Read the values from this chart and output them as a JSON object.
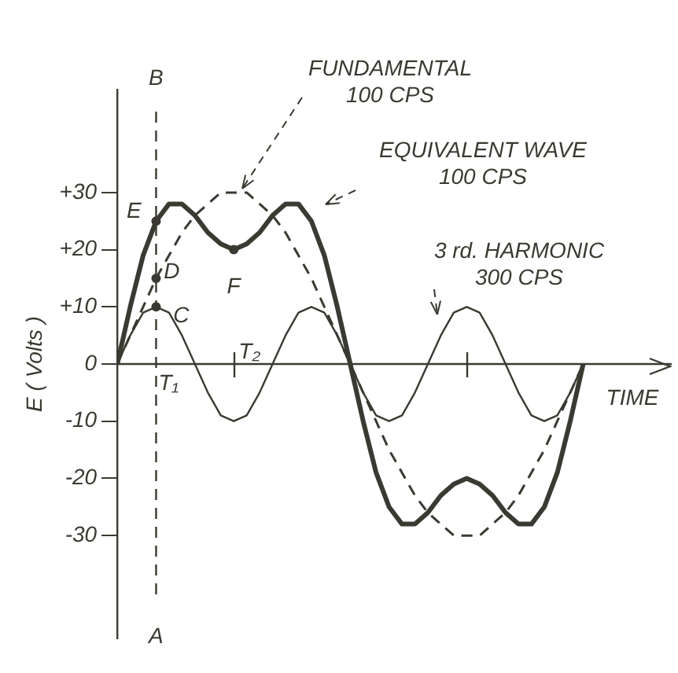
{
  "chart_data": {
    "type": "line",
    "ylabel": "E ( Volts )",
    "xlabel": "TIME",
    "categories": [
      null,
      null,
      null,
      null,
      null,
      null,
      null,
      null,
      null,
      null,
      null,
      null,
      null,
      null,
      null,
      null,
      null,
      null,
      null,
      null,
      null,
      null,
      null,
      null,
      null,
      null,
      null,
      null,
      null,
      null,
      null,
      null,
      null,
      null,
      null,
      null,
      null
    ],
    "series": [
      {
        "name": "FUNDAMENTAL\n100 CPS",
        "color": "#3a3a32",
        "line_style": "dashed",
        "values": [
          0,
          5,
          10,
          15,
          19,
          23,
          26,
          28,
          30,
          30,
          30,
          28,
          26,
          23,
          19,
          15,
          10,
          5,
          0,
          -5,
          -10,
          -15,
          -19,
          -23,
          -26,
          -28,
          -30,
          -30,
          -30,
          -28,
          -26,
          -23,
          -19,
          -15,
          -10,
          -5,
          0
        ]
      },
      {
        "name": "EQUIVALENT WAVE\n100 CPS",
        "color": "#3a3a32",
        "line_style": "solid",
        "values": [
          0,
          10,
          19,
          25,
          28,
          28,
          26,
          23,
          21,
          20,
          21,
          23,
          26,
          28,
          28,
          25,
          19,
          10,
          0,
          -10,
          -19,
          -25,
          -28,
          -28,
          -26,
          -23,
          -21,
          -20,
          -21,
          -23,
          -26,
          -28,
          -28,
          -25,
          -19,
          -10,
          0
        ]
      },
      {
        "name": "3 rd. HARMONIC\n300 CPS",
        "color": "#3a3a32",
        "line_style": "solid",
        "values": [
          0,
          5,
          9,
          10,
          9,
          5,
          0,
          -5,
          -9,
          -10,
          -9,
          -5,
          0,
          5,
          9,
          10,
          9,
          5,
          0,
          -5,
          -9,
          -10,
          -9,
          -5,
          0,
          5,
          9,
          10,
          9,
          5,
          0,
          -5,
          -9,
          -10,
          -9,
          -5,
          0
        ]
      }
    ],
    "ylim": [
      -48,
      48
    ],
    "yticks": [
      {
        "value": 30,
        "label": "+30"
      },
      {
        "value": 20,
        "label": "+20"
      },
      {
        "value": 10,
        "label": "+10"
      },
      0,
      -10,
      -20,
      -30
    ],
    "annotations": [
      "B",
      "A",
      "T₁",
      "T₂",
      "E",
      "D",
      "C",
      "F"
    ],
    "tick_labels": "y",
    "grid": false,
    "legend": false,
    "marker": "none"
  }
}
